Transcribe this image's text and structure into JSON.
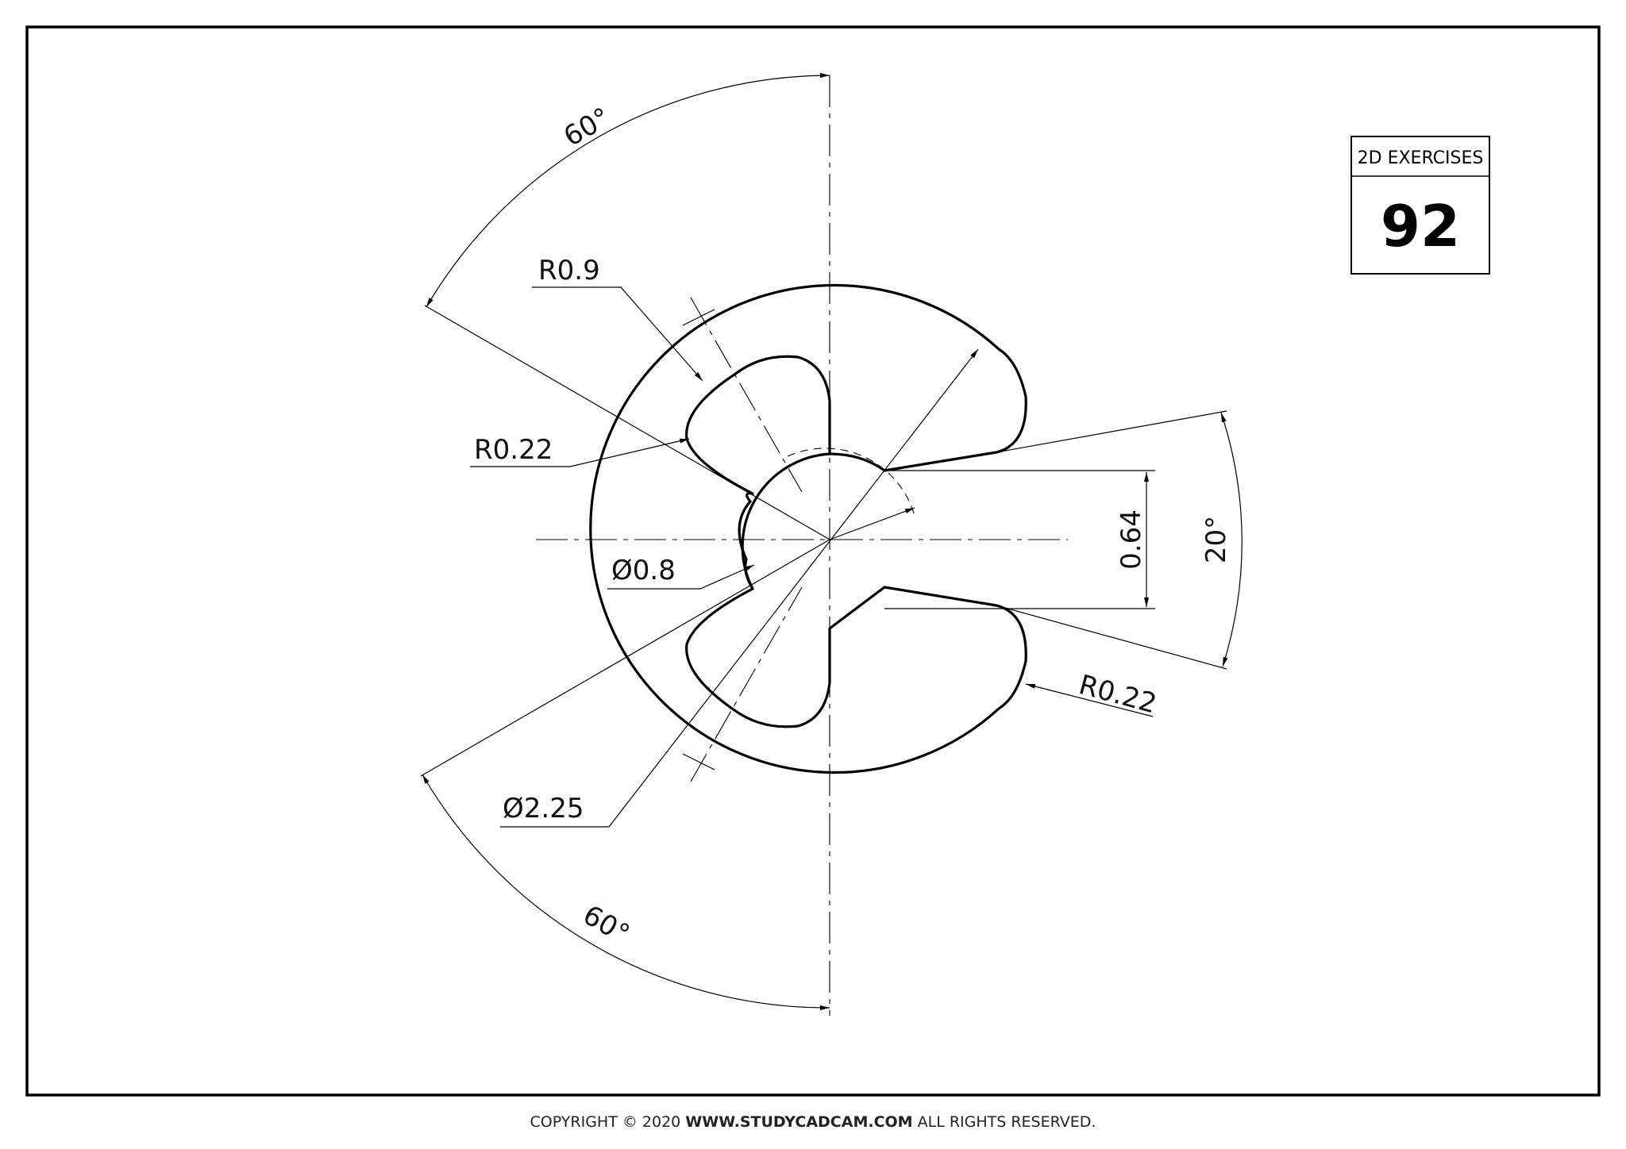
{
  "title_block": {
    "label": "2D EXERCISES",
    "number": "92"
  },
  "dimensions": {
    "angle_top": "60°",
    "angle_bottom": "60°",
    "angle_right": "20°",
    "radius_outer_lobe": "R0.9",
    "radius_small_left": "R0.22",
    "radius_small_right": "R0.22",
    "dia_inner": "Ø0.8",
    "dia_outer": "Ø2.25",
    "slot_width": "0.64"
  },
  "copyright": {
    "prefix": "COPYRIGHT © 2020 ",
    "site": "WWW.STUDYCADCAM.COM",
    "suffix": " ALL RIGHTS RESERVED."
  }
}
